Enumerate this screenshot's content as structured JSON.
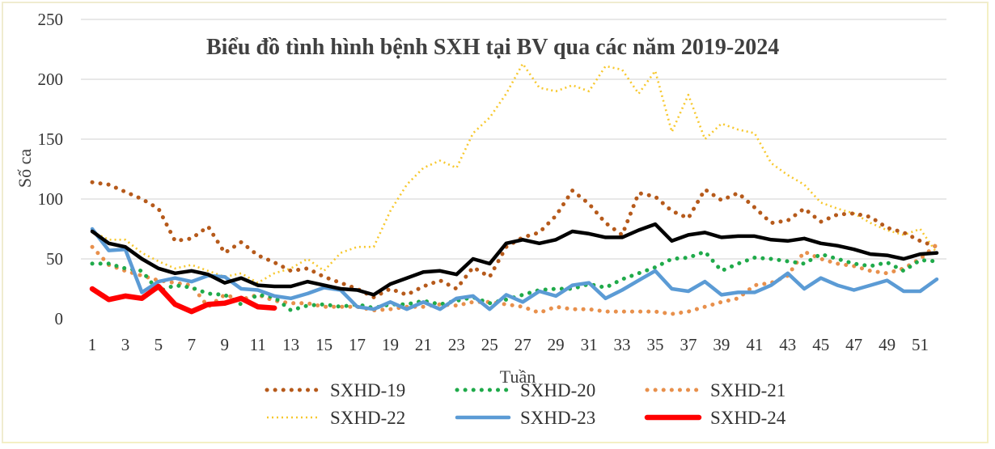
{
  "chart_data": {
    "type": "line",
    "title": "Biểu đồ tình hình bệnh SXH tại BV qua các năm 2019-2024",
    "xlabel": "Tuần",
    "ylabel": "Số ca",
    "ylim": [
      0,
      250
    ],
    "yticks": [
      0,
      50,
      100,
      150,
      200,
      250
    ],
    "xlim": [
      1,
      52
    ],
    "xticks": [
      1,
      3,
      5,
      7,
      9,
      11,
      13,
      15,
      17,
      19,
      21,
      23,
      25,
      27,
      29,
      31,
      33,
      35,
      37,
      39,
      41,
      43,
      45,
      47,
      49,
      51
    ],
    "grid": "horizontal",
    "legend_position": "bottom",
    "series": [
      {
        "name": "SXHD-19",
        "color": "#b65a1b",
        "style": "dotted-bold",
        "x": [
          1,
          2,
          3,
          4,
          5,
          6,
          7,
          8,
          9,
          10,
          11,
          12,
          13,
          14,
          15,
          16,
          17,
          18,
          19,
          20,
          21,
          22,
          23,
          24,
          25,
          26,
          27,
          28,
          29,
          30,
          31,
          32,
          33,
          34,
          35,
          36,
          37,
          38,
          39,
          40,
          41,
          42,
          43,
          44,
          45,
          46,
          47,
          48,
          49,
          50,
          51,
          52
        ],
        "values": [
          114,
          112,
          106,
          100,
          92,
          65,
          67,
          77,
          55,
          64,
          53,
          47,
          40,
          42,
          35,
          30,
          25,
          18,
          25,
          20,
          27,
          32,
          25,
          43,
          35,
          60,
          68,
          72,
          86,
          107,
          96,
          80,
          70,
          105,
          102,
          90,
          84,
          108,
          99,
          105,
          93,
          80,
          82,
          92,
          81,
          87,
          88,
          85,
          76,
          72,
          65,
          60
        ]
      },
      {
        "name": "SXHD-20",
        "color": "#1faa4a",
        "style": "dotted-bold",
        "x": [
          1,
          2,
          3,
          4,
          5,
          6,
          7,
          8,
          9,
          10,
          11,
          12,
          13,
          14,
          15,
          16,
          17,
          18,
          19,
          20,
          21,
          22,
          23,
          24,
          25,
          26,
          27,
          28,
          29,
          30,
          31,
          32,
          33,
          34,
          35,
          36,
          37,
          38,
          39,
          40,
          41,
          42,
          43,
          44,
          45,
          46,
          47,
          48,
          49,
          50,
          51,
          52
        ],
        "values": [
          46,
          46,
          42,
          40,
          23,
          28,
          26,
          21,
          20,
          12,
          20,
          18,
          7,
          11,
          12,
          10,
          12,
          9,
          12,
          12,
          15,
          12,
          15,
          18,
          13,
          16,
          20,
          24,
          25,
          25,
          29,
          26,
          33,
          38,
          43,
          50,
          51,
          56,
          40,
          46,
          51,
          50,
          48,
          46,
          54,
          50,
          46,
          44,
          47,
          40,
          49,
          48
        ]
      },
      {
        "name": "SXHD-21",
        "color": "#e8904c",
        "style": "dotted-bold",
        "x": [
          1,
          2,
          3,
          4,
          5,
          6,
          7,
          8,
          9,
          10,
          11,
          12,
          13,
          14,
          15,
          16,
          17,
          18,
          19,
          20,
          21,
          22,
          23,
          24,
          25,
          26,
          27,
          28,
          29,
          30,
          31,
          32,
          33,
          34,
          35,
          36,
          37,
          38,
          39,
          40,
          41,
          42,
          43,
          44,
          45,
          46,
          47,
          48,
          49,
          50,
          51,
          52
        ],
        "values": [
          60,
          45,
          40,
          36,
          32,
          30,
          28,
          10,
          20,
          16,
          20,
          15,
          13,
          13,
          10,
          10,
          10,
          7,
          8,
          10,
          10,
          12,
          11,
          14,
          14,
          12,
          10,
          5,
          10,
          8,
          8,
          6,
          6,
          6,
          6,
          4,
          6,
          10,
          14,
          17,
          28,
          30,
          36,
          56,
          50,
          46,
          44,
          40,
          38,
          42,
          50,
          62
        ]
      },
      {
        "name": "SXHD-22",
        "color": "#f7c82e",
        "style": "dotted",
        "x": [
          1,
          2,
          3,
          4,
          5,
          6,
          7,
          8,
          9,
          10,
          11,
          12,
          13,
          14,
          15,
          16,
          17,
          18,
          19,
          20,
          21,
          22,
          23,
          24,
          25,
          26,
          27,
          28,
          29,
          30,
          31,
          32,
          33,
          34,
          35,
          36,
          37,
          38,
          39,
          40,
          41,
          42,
          43,
          44,
          45,
          46,
          47,
          48,
          49,
          50,
          51,
          52
        ],
        "values": [
          73,
          66,
          66,
          55,
          48,
          42,
          45,
          40,
          35,
          38,
          30,
          38,
          42,
          50,
          40,
          55,
          60,
          60,
          90,
          112,
          126,
          132,
          126,
          155,
          168,
          188,
          213,
          193,
          190,
          195,
          190,
          211,
          208,
          188,
          207,
          156,
          187,
          150,
          163,
          158,
          155,
          130,
          120,
          112,
          97,
          92,
          88,
          80,
          74,
          70,
          75,
          55
        ]
      },
      {
        "name": "SXHD-23",
        "color": "#5b9bd5",
        "style": "solid",
        "x": [
          1,
          2,
          3,
          4,
          5,
          6,
          7,
          8,
          9,
          10,
          11,
          12,
          13,
          14,
          15,
          16,
          17,
          18,
          19,
          20,
          21,
          22,
          23,
          24,
          25,
          26,
          27,
          28,
          29,
          30,
          31,
          32,
          33,
          34,
          35,
          36,
          37,
          38,
          39,
          40,
          41,
          42,
          43,
          44,
          45,
          46,
          47,
          48,
          49,
          50,
          51,
          52
        ],
        "values": [
          75,
          57,
          58,
          22,
          31,
          34,
          31,
          36,
          35,
          25,
          24,
          19,
          17,
          21,
          26,
          24,
          10,
          8,
          14,
          8,
          14,
          8,
          17,
          19,
          8,
          20,
          14,
          23,
          19,
          28,
          30,
          17,
          24,
          32,
          40,
          25,
          23,
          31,
          20,
          22,
          22,
          28,
          38,
          25,
          34,
          28,
          24,
          28,
          32,
          23,
          23,
          33
        ]
      },
      {
        "name": "SXHD-24",
        "color": "#ff0000",
        "style": "solid-bold",
        "x": [
          1,
          2,
          3,
          4,
          5,
          6,
          7,
          8,
          9,
          10,
          11,
          12
        ],
        "values": [
          25,
          16,
          19,
          17,
          27,
          12,
          6,
          12,
          13,
          17,
          10,
          9
        ]
      }
    ],
    "black_series": {
      "color": "#000000",
      "x": [
        1,
        2,
        3,
        4,
        5,
        6,
        7,
        8,
        9,
        10,
        11,
        12,
        13,
        14,
        15,
        16,
        17,
        18,
        19,
        20,
        21,
        22,
        23,
        24,
        25,
        26,
        27,
        28,
        29,
        30,
        31,
        32,
        33,
        34,
        35,
        36,
        37,
        38,
        39,
        40,
        41,
        42,
        43,
        44,
        45,
        46,
        47,
        48,
        49,
        50,
        51,
        52
      ],
      "values": [
        73,
        63,
        60,
        50,
        42,
        38,
        40,
        37,
        30,
        34,
        28,
        27,
        27,
        31,
        28,
        25,
        24,
        20,
        29,
        34,
        39,
        40,
        37,
        50,
        46,
        63,
        66,
        63,
        66,
        73,
        71,
        68,
        68,
        74,
        79,
        65,
        70,
        72,
        68,
        69,
        69,
        66,
        65,
        67,
        63,
        61,
        58,
        54,
        53,
        50,
        54,
        55
      ]
    }
  }
}
